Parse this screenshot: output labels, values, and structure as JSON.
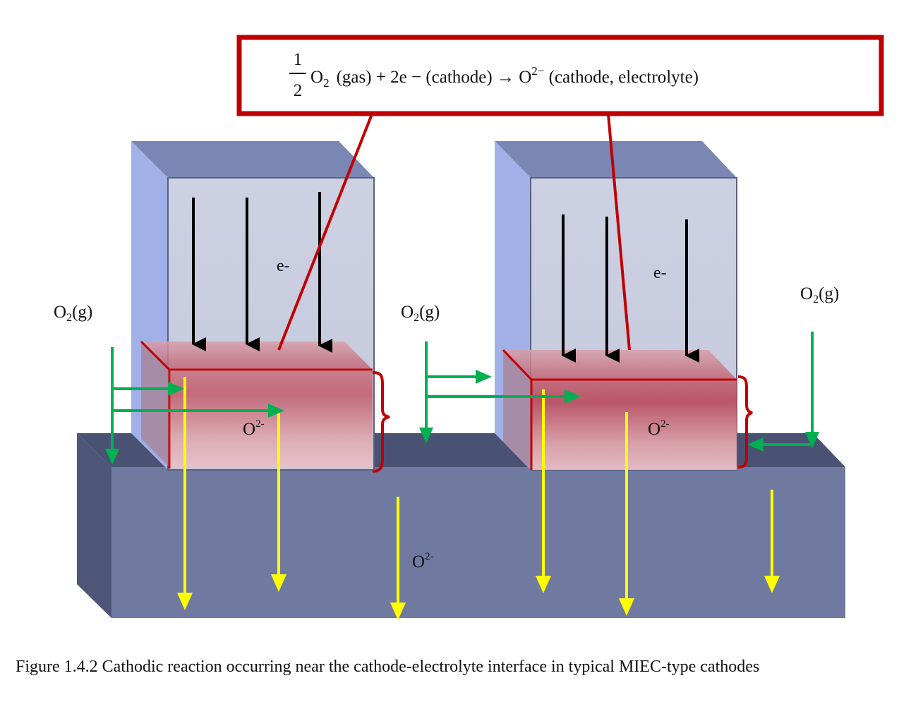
{
  "equation": {
    "fraction_num": "1",
    "fraction_den": "2",
    "o2_letter": "O",
    "o2_sub": "2",
    "rest_1": "(gas) +  2e − (cathode)  →  O",
    "o_sup": "2−",
    "rest_2": " (cathode, electrolyte)"
  },
  "labels": {
    "e_left": "e-",
    "e_right": "e-",
    "o2g_base": "O",
    "o2g_sub": "2",
    "o2g_tail": "(g)",
    "o2minus_base": "O",
    "o2minus_sup": "2-"
  },
  "caption": "Figure 1.4.2 Cathodic reaction occurring near the cathode-electrolyte interface in typical MIEC-type cathodes",
  "colors": {
    "callout_border": "#c00000",
    "electron_arrow": "#000000",
    "oxygen_gas_arrow": "#00b050",
    "oxide_ion_arrow": "#ffff00",
    "electrolyte_front": "#7079a0",
    "cathode_block": "#c8ccdd",
    "reaction_zone": "#c06070"
  }
}
